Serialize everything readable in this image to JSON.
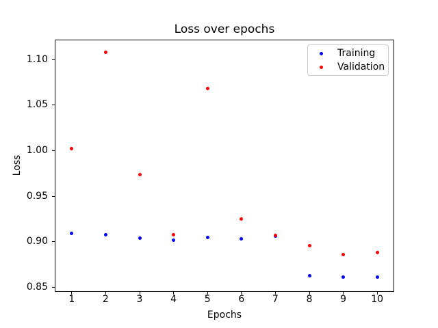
{
  "chart_data": {
    "type": "scatter",
    "title": "Loss over epochs",
    "xlabel": "Epochs",
    "ylabel": "Loss",
    "x": [
      1,
      2,
      3,
      4,
      5,
      6,
      7,
      8,
      9,
      10
    ],
    "series": [
      {
        "name": "Training",
        "color": "#0000ff",
        "values": [
          0.909,
          0.908,
          0.904,
          0.902,
          0.905,
          0.903,
          0.906,
          0.863,
          0.861,
          0.861
        ]
      },
      {
        "name": "Validation",
        "color": "#ff0000",
        "values": [
          1.002,
          1.108,
          0.974,
          0.908,
          1.068,
          0.925,
          0.907,
          0.896,
          0.886,
          0.888
        ]
      }
    ],
    "xlim": [
      0.5,
      10.5
    ],
    "ylim": [
      0.845,
      1.122
    ],
    "xticks": [
      1,
      2,
      3,
      4,
      5,
      6,
      7,
      8,
      9,
      10
    ],
    "xtick_labels": [
      "1",
      "2",
      "3",
      "4",
      "5",
      "6",
      "7",
      "8",
      "9",
      "10"
    ],
    "yticks": [
      0.85,
      0.9,
      0.95,
      1.0,
      1.05,
      1.1
    ],
    "ytick_labels": [
      "0.85",
      "0.90",
      "0.95",
      "1.00",
      "1.05",
      "1.10"
    ],
    "grid": false,
    "legend": {
      "position": "upper right",
      "entries": [
        "Training",
        "Validation"
      ]
    },
    "colors": {
      "axes": "#000000",
      "text": "#000000",
      "legend_border": "#cccccc",
      "background": "#ffffff"
    }
  }
}
